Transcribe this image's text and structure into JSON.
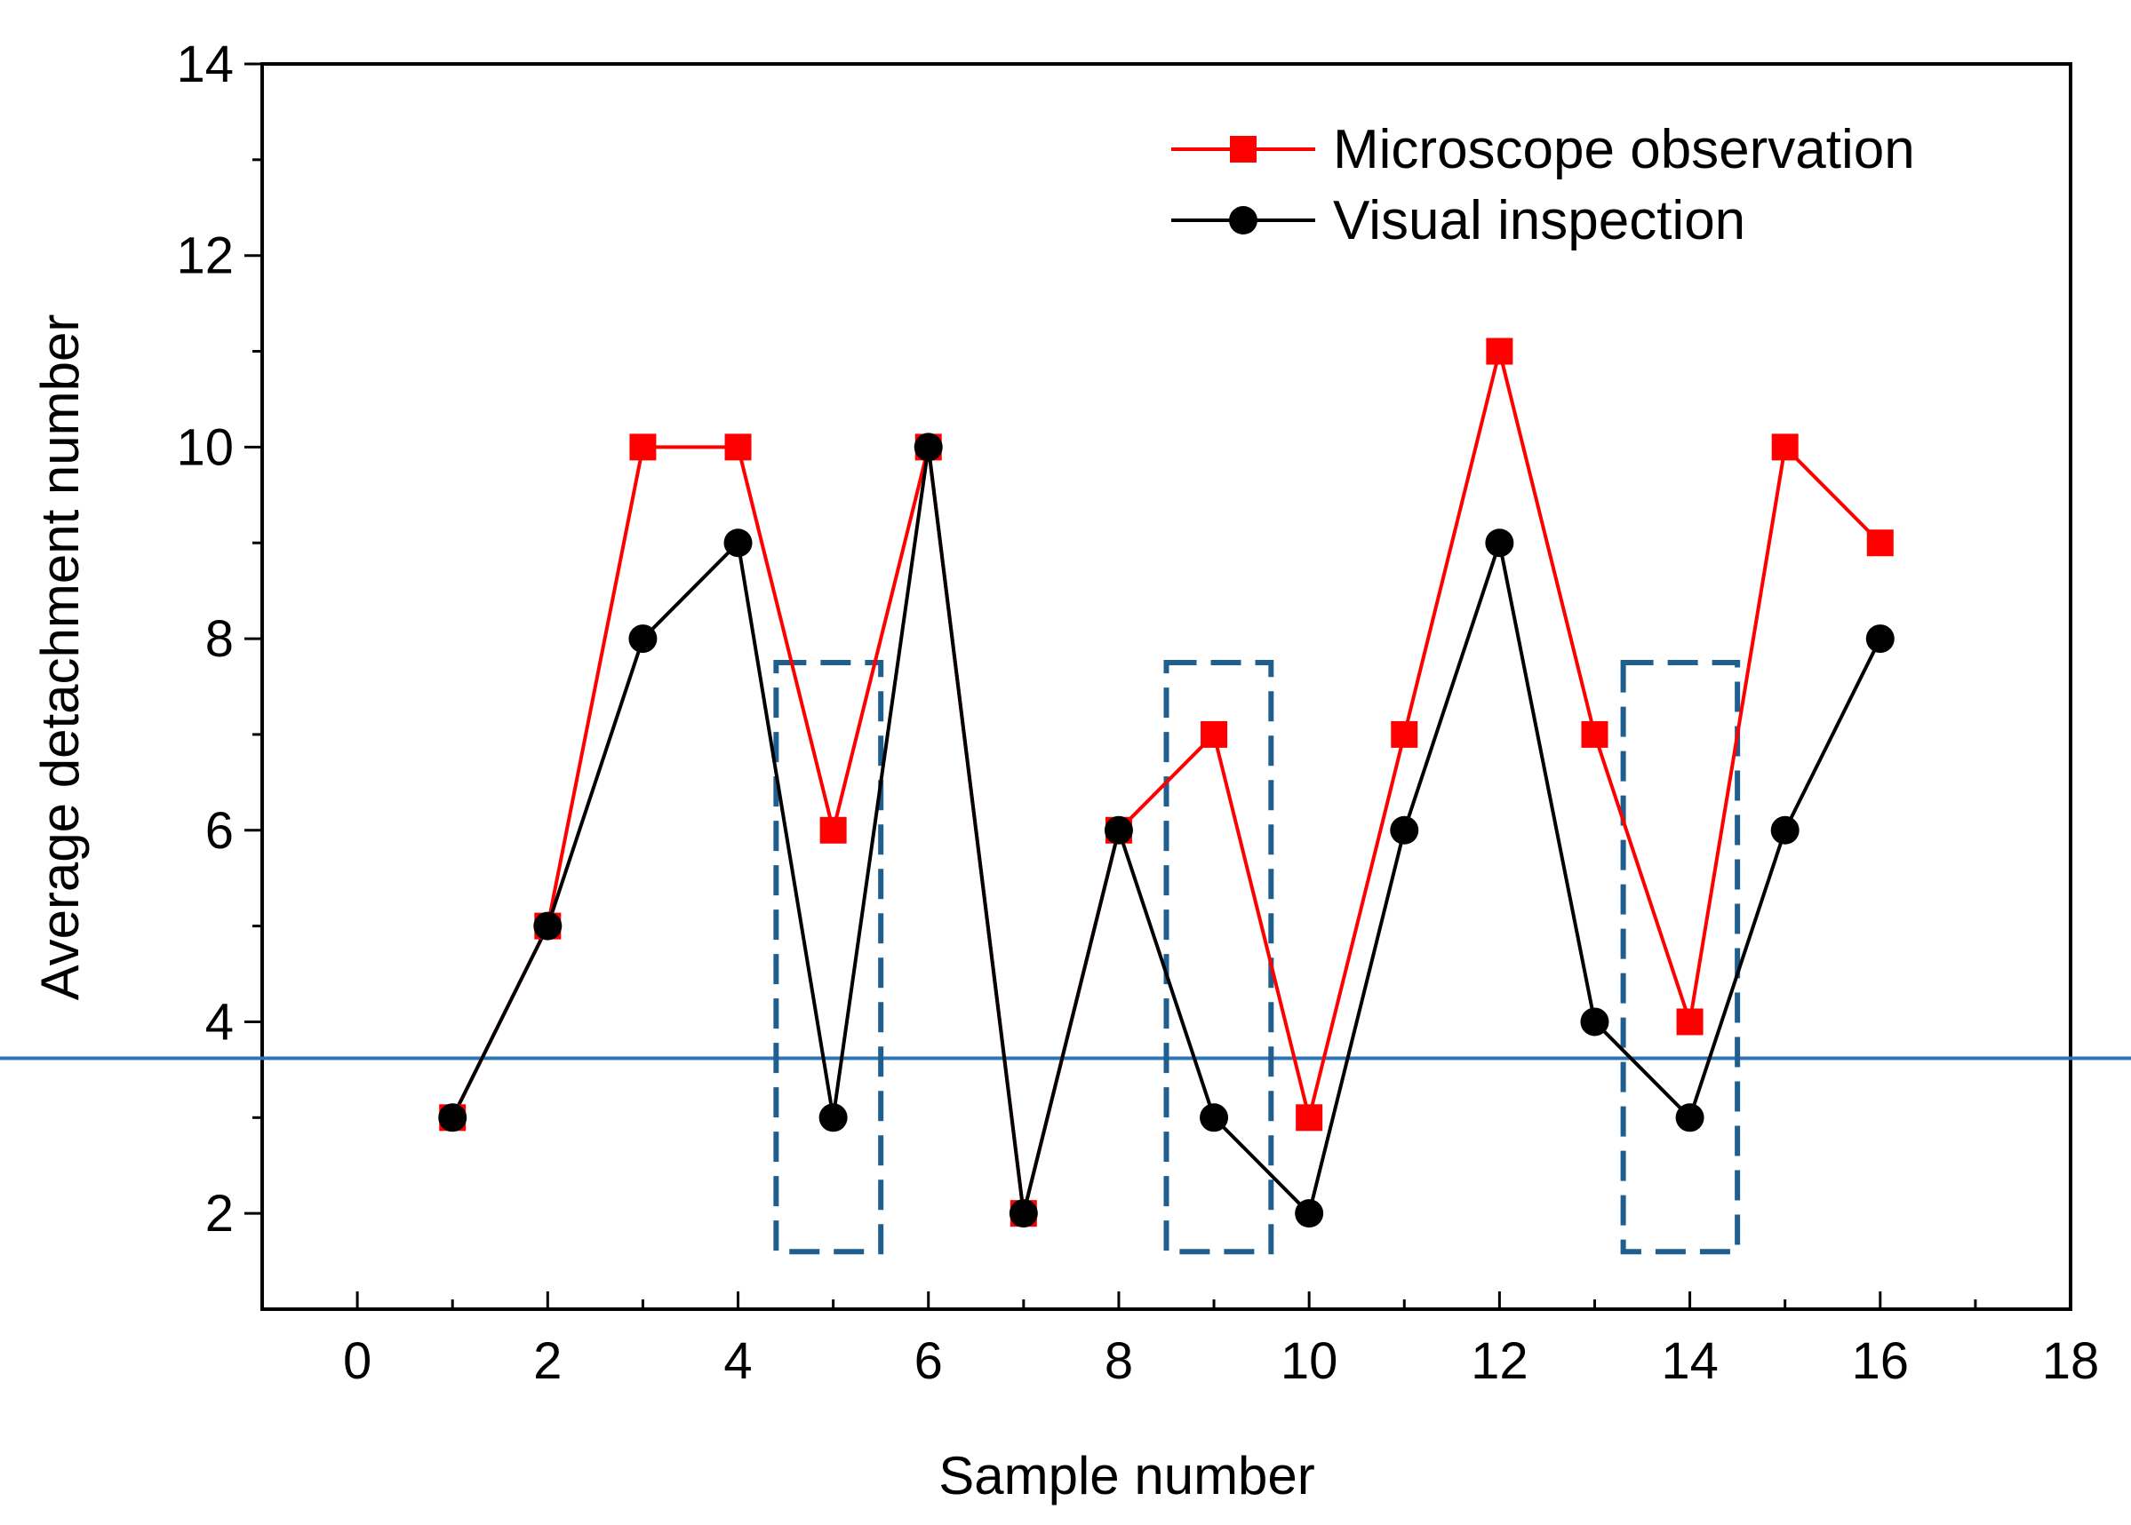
{
  "chart_data": {
    "type": "line",
    "xlabel": "Sample number",
    "ylabel": "Average detachment number",
    "xlim": [
      -1,
      18
    ],
    "ylim": [
      1,
      14
    ],
    "x_ticks": [
      0,
      2,
      4,
      6,
      8,
      10,
      12,
      14,
      16,
      18
    ],
    "y_ticks": [
      2,
      4,
      6,
      8,
      10,
      12,
      14
    ],
    "x_minor_ticks": [
      1,
      3,
      5,
      7,
      9,
      11,
      13,
      15,
      17
    ],
    "y_minor_ticks": [
      3,
      5,
      7,
      9,
      11,
      13
    ],
    "grid": false,
    "legend_position": "top-right",
    "x": [
      1,
      2,
      3,
      4,
      5,
      6,
      7,
      8,
      9,
      10,
      11,
      12,
      13,
      14,
      15,
      16
    ],
    "series": [
      {
        "name": "Microscope observation",
        "color": "#ff0000",
        "marker": "square",
        "values": [
          3,
          5,
          10,
          10,
          6,
          10,
          2,
          6,
          7,
          3,
          7,
          11,
          7,
          4,
          10,
          9
        ]
      },
      {
        "name": "Visual inspection",
        "color": "#000000",
        "marker": "circle",
        "values": [
          3,
          5,
          8,
          9,
          3,
          10,
          2,
          6,
          3,
          2,
          6,
          9,
          4,
          3,
          6,
          8
        ]
      }
    ],
    "reference_line": {
      "y": 3.62,
      "color": "#2e75b6"
    },
    "highlight_boxes": [
      {
        "x_range": [
          4.4,
          5.5
        ],
        "y_range": [
          1.6,
          7.75
        ],
        "color": "#1f5f8f"
      },
      {
        "x_range": [
          8.5,
          9.6
        ],
        "y_range": [
          1.6,
          7.75
        ],
        "color": "#1f5f8f"
      },
      {
        "x_range": [
          13.3,
          14.5
        ],
        "y_range": [
          1.6,
          7.75
        ],
        "color": "#1f5f8f"
      }
    ]
  }
}
